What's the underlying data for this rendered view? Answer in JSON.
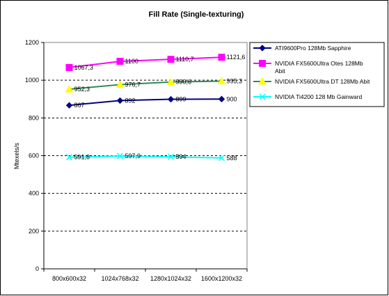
{
  "chart_data": {
    "type": "line",
    "title": "Fill Rate (Single-texturing)",
    "xlabel": "",
    "ylabel": "Mtexels/s",
    "ylim": [
      0,
      1200
    ],
    "yticks": [
      0,
      200,
      400,
      600,
      800,
      1000,
      1200
    ],
    "grid": "horizontal dashed",
    "legend_position": "right",
    "categories": [
      "800x600x32",
      "1024x768x32",
      "1280x1024x32",
      "1600x1200x32"
    ],
    "series": [
      {
        "name": "ATI9600Pro 128Mb Sapphire",
        "name_lines": [
          "ATI9600Pro 128Mb Sapphire"
        ],
        "color": "#000080",
        "marker": "diamond",
        "values": [
          867,
          892,
          899,
          900
        ],
        "labels": [
          "867",
          "892",
          "899",
          "900"
        ]
      },
      {
        "name": "NVIDIA FX5600Ultra Otes 128Mb Abit",
        "name_lines": [
          "NVIDIA FX5600Ultra Otes 128Mb",
          "Abit"
        ],
        "color": "#FF00FF",
        "marker": "square",
        "values": [
          1067.3,
          1100,
          1110.7,
          1121.6
        ],
        "labels": [
          "1067,3",
          "1100",
          "1110,7",
          "1121,6"
        ]
      },
      {
        "name": "NVIDIA FX5600Ultra DT 128Mb Abit",
        "name_lines": [
          "NVIDIA FX5600Ultra DT 128Mb Abit"
        ],
        "color": "#2E8B57",
        "marker_color": "#FFFF00",
        "marker": "triangle",
        "values": [
          952.3,
          976.7,
          990.6,
          995.3
        ],
        "labels": [
          "952,3",
          "976,7",
          "990,6",
          "995,3"
        ]
      },
      {
        "name": "NVIDIA Ti4200 128 Mb Gainward",
        "name_lines": [
          "NVIDIA Ti4200 128 Mb Gainward"
        ],
        "color": "#00FFFF",
        "marker": "x",
        "values": [
          591.8,
          597.9,
          594,
          588
        ],
        "labels": [
          "591,8",
          "597,9",
          "594",
          "588"
        ]
      }
    ]
  }
}
